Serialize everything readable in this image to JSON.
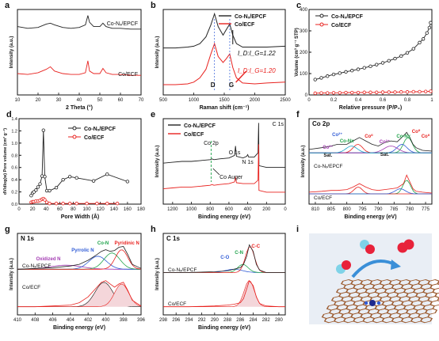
{
  "colors": {
    "co_n_epcf": "#222222",
    "co_ecf": "#e8221f",
    "fit_blue": "#2f5bd6",
    "fit_green": "#1fa34a",
    "fit_red": "#e8221f",
    "fit_purple": "#a23ab2",
    "fit_cyan": "#1aa3c9",
    "shaded": "#f4d6da",
    "panel_i_bg": "#e9eef5"
  },
  "legend_entries": {
    "co_n_epcf": "Co-Nₓ/EPCF",
    "co_ecf": "Co/ECF"
  },
  "panels": {
    "a": {
      "letter": "a",
      "xlabel": "2 Theta (°)",
      "ylabel": "Intensity (a.u.)",
      "curve_labels": [
        "Co-Nₓ/EPCF",
        "Co/ECF"
      ]
    },
    "b": {
      "letter": "b",
      "xlabel": "Raman shift (cm⁻¹)",
      "ylabel": "Intensity (a.u.)",
      "ratio_top": "I_D:I_G=1.22",
      "ratio_bottom": "I_D:I_G=1.20",
      "band_d": "D",
      "band_g": "G"
    },
    "c": {
      "letter": "c",
      "xlabel": "Relative pressure (P/P₀)",
      "ylabel": "Volume (cm³ g⁻¹ STP)"
    },
    "d": {
      "letter": "d",
      "xlabel": "Pore Width (Å)",
      "ylabel": "dV/dlog(w) Pore volume (cm³ g⁻¹)"
    },
    "e": {
      "letter": "e",
      "xlabel": "Binding energy (eV)",
      "ylabel": "Intensity (a.u.)",
      "peak_labels": [
        "C 1s",
        "O 1s",
        "N 1s",
        "Co 2p",
        "Co Auger"
      ]
    },
    "f": {
      "letter": "f",
      "title": "Co 2p",
      "xlabel": "Binding energy (eV)",
      "ylabel": "Intensity (a.u.)",
      "peak_labels": [
        "Co⁰",
        "Co²⁺",
        "Co-Nx",
        "Co³⁺",
        "Co⁰",
        "Co³⁺",
        "Co-Nx",
        "Co⁰",
        "Sat.",
        "Sat."
      ],
      "curve_labels": [
        "Co-Nₓ/EPCF",
        "Co/ECF"
      ]
    },
    "g": {
      "letter": "g",
      "title": "N 1s",
      "xlabel": "Binding energy (eV)",
      "ylabel": "Intensity (a.u.)",
      "peak_labels": [
        "Oxidized N",
        "Pyrrolic N",
        "Co-N",
        "Pyridinic N"
      ],
      "curve_labels": [
        "Co-Nₓ/EPCF",
        "Co/ECF"
      ]
    },
    "h": {
      "letter": "h",
      "title": "C 1s",
      "xlabel": "Binding energy (eV)",
      "ylabel": "Intensity (a.u.)",
      "peak_labels": [
        "C-O",
        "C-N",
        "C-C"
      ],
      "curve_labels": [
        "Co-Nₓ/EPCF",
        "Co/ECF"
      ]
    },
    "i": {
      "letter": "i"
    }
  },
  "chart_data": [
    {
      "panel": "a",
      "type": "line",
      "xlabel": "2 Theta (°)",
      "ylabel": "Intensity (a.u.)",
      "xlim": [
        10,
        70
      ],
      "xticks": [
        10,
        20,
        30,
        40,
        50,
        60,
        70
      ],
      "series": [
        {
          "name": "Co-Nₓ/EPCF",
          "x": [
            10,
            15,
            20,
            24,
            26,
            28,
            32,
            36,
            40,
            43,
            44.2,
            45,
            47,
            50,
            51.5,
            53,
            56,
            60,
            65,
            70
          ],
          "y": [
            0.8,
            0.78,
            0.79,
            0.83,
            0.84,
            0.82,
            0.79,
            0.78,
            0.79,
            0.82,
            0.93,
            0.85,
            0.8,
            0.8,
            0.84,
            0.8,
            0.78,
            0.78,
            0.77,
            0.77
          ]
        },
        {
          "name": "Co/ECF",
          "x": [
            10,
            15,
            20,
            24,
            26,
            28,
            32,
            36,
            40,
            43,
            44.2,
            45,
            47,
            50,
            51.5,
            53,
            56,
            60,
            65,
            70
          ],
          "y": [
            0.25,
            0.24,
            0.26,
            0.3,
            0.33,
            0.28,
            0.25,
            0.24,
            0.24,
            0.26,
            0.4,
            0.28,
            0.25,
            0.25,
            0.31,
            0.26,
            0.24,
            0.24,
            0.23,
            0.23
          ]
        }
      ]
    },
    {
      "panel": "b",
      "type": "line",
      "xlabel": "Raman shift (cm⁻¹)",
      "ylabel": "Intensity (a.u.)",
      "xlim": [
        500,
        2500
      ],
      "xticks": [
        500,
        1000,
        1500,
        2000,
        2500
      ],
      "series": [
        {
          "name": "Co-Nₓ/EPCF",
          "x": [
            500,
            700,
            900,
            1000,
            1100,
            1200,
            1280,
            1340,
            1400,
            1480,
            1530,
            1590,
            1640,
            1700,
            1800,
            2000,
            2200,
            2500
          ],
          "y": [
            0.55,
            0.55,
            0.56,
            0.57,
            0.6,
            0.68,
            0.82,
            0.95,
            0.8,
            0.7,
            0.76,
            0.83,
            0.7,
            0.6,
            0.56,
            0.56,
            0.56,
            0.57
          ]
        },
        {
          "name": "Co/ECF",
          "x": [
            500,
            700,
            900,
            1000,
            1100,
            1200,
            1280,
            1340,
            1400,
            1480,
            1530,
            1590,
            1640,
            1700,
            1800,
            2000,
            2200,
            2500
          ],
          "y": [
            0.12,
            0.12,
            0.13,
            0.15,
            0.2,
            0.3,
            0.48,
            0.6,
            0.45,
            0.38,
            0.42,
            0.48,
            0.32,
            0.2,
            0.14,
            0.13,
            0.14,
            0.15
          ]
        }
      ]
    },
    {
      "panel": "c",
      "type": "line",
      "xlabel": "Relative pressure (P/P₀)",
      "ylabel": "Volume (cm³ g⁻¹ STP)",
      "xlim": [
        0,
        1.0
      ],
      "ylim": [
        0,
        400
      ],
      "xticks": [
        0.0,
        0.2,
        0.4,
        0.6,
        0.8,
        1.0
      ],
      "yticks": [
        0,
        100,
        200,
        300,
        400
      ],
      "series": [
        {
          "name": "Co-Nₓ/EPCF",
          "x": [
            0.05,
            0.1,
            0.15,
            0.2,
            0.25,
            0.3,
            0.35,
            0.4,
            0.45,
            0.5,
            0.55,
            0.6,
            0.65,
            0.7,
            0.75,
            0.8,
            0.85,
            0.9,
            0.93,
            0.96,
            0.98,
            0.99
          ],
          "y": [
            72,
            80,
            88,
            96,
            102,
            108,
            114,
            120,
            127,
            134,
            142,
            150,
            160,
            170,
            182,
            197,
            216,
            245,
            262,
            290,
            315,
            338
          ]
        },
        {
          "name": "Co/ECF",
          "x": [
            0.05,
            0.1,
            0.15,
            0.2,
            0.25,
            0.3,
            0.35,
            0.4,
            0.45,
            0.5,
            0.55,
            0.6,
            0.65,
            0.7,
            0.75,
            0.8,
            0.85,
            0.9,
            0.95,
            0.99
          ],
          "y": [
            8,
            9,
            9,
            10,
            10,
            11,
            11,
            11,
            12,
            12,
            12,
            13,
            13,
            13,
            14,
            14,
            15,
            15,
            16,
            17
          ]
        }
      ]
    },
    {
      "panel": "d",
      "type": "line",
      "xlabel": "Pore Width (Å)",
      "ylabel": "dV/dlog(w) Pore volume (cm³ g⁻¹)",
      "xlim": [
        0,
        180
      ],
      "ylim": [
        0,
        1.4
      ],
      "xticks": [
        0,
        20,
        40,
        60,
        80,
        100,
        120,
        140,
        160,
        180
      ],
      "yticks": [
        0.0,
        0.2,
        0.4,
        0.6,
        0.8,
        1.0,
        1.2,
        1.4
      ],
      "series": [
        {
          "name": "Co-Nₓ/EPCF",
          "x": [
            18,
            20,
            22,
            25,
            28,
            31,
            34,
            36,
            38,
            41,
            45,
            55,
            65,
            75,
            85,
            110,
            130,
            160
          ],
          "y": [
            0.14,
            0.18,
            0.2,
            0.23,
            0.28,
            0.33,
            0.46,
            1.21,
            0.45,
            0.22,
            0.22,
            0.27,
            0.4,
            0.45,
            0.43,
            0.38,
            0.49,
            0.37
          ]
        },
        {
          "name": "Co/ECF",
          "x": [
            18,
            20,
            22,
            25,
            28,
            31,
            34,
            36,
            38,
            41,
            45,
            55,
            65,
            75,
            85,
            100,
            115,
            130,
            145
          ],
          "y": [
            0.03,
            0.04,
            0.04,
            0.05,
            0.05,
            0.06,
            0.08,
            0.09,
            0.07,
            0.03,
            0.01,
            0.01,
            0.01,
            0.01,
            0.01,
            0.01,
            0.01,
            0.01,
            0.01
          ]
        }
      ]
    },
    {
      "panel": "e",
      "type": "line",
      "xlabel": "Binding energy (eV)",
      "ylabel": "Intensity (a.u.)",
      "xlim": [
        1300,
        0
      ],
      "xticks": [
        1200,
        1000,
        800,
        600,
        400,
        200,
        0
      ],
      "series": [
        {
          "name": "Co-Nₓ/EPCF",
          "x": [
            1300,
            1200,
            1100,
            1000,
            900,
            800,
            780,
            760,
            700,
            600,
            540,
            530,
            520,
            450,
            410,
            400,
            390,
            330,
            290,
            284,
            280,
            200,
            100,
            0
          ],
          "y": [
            0.48,
            0.49,
            0.5,
            0.5,
            0.51,
            0.52,
            0.53,
            0.52,
            0.53,
            0.54,
            0.57,
            0.68,
            0.56,
            0.54,
            0.56,
            0.58,
            0.55,
            0.55,
            0.6,
            0.95,
            0.45,
            0.43,
            0.43,
            0.43
          ]
        },
        {
          "name": "Co/ECF",
          "x": [
            1300,
            1200,
            1100,
            1000,
            900,
            800,
            780,
            760,
            700,
            600,
            540,
            530,
            520,
            450,
            330,
            290,
            284,
            280,
            200,
            100,
            0
          ],
          "y": [
            0.18,
            0.19,
            0.2,
            0.2,
            0.21,
            0.22,
            0.23,
            0.22,
            0.23,
            0.24,
            0.26,
            0.32,
            0.25,
            0.24,
            0.24,
            0.28,
            0.7,
            0.16,
            0.14,
            0.14,
            0.14
          ]
        }
      ]
    },
    {
      "panel": "f",
      "type": "line",
      "xlabel": "Binding energy (eV)",
      "ylabel": "Intensity (a.u.)",
      "xlim": [
        812,
        773
      ],
      "xticks": [
        810,
        805,
        800,
        795,
        790,
        785,
        780,
        775
      ],
      "series": [
        {
          "name": "Co-Nₓ/EPCF",
          "x": [
            812,
            808,
            805,
            803,
            800,
            798,
            796,
            794,
            792,
            790,
            788,
            786,
            784,
            782,
            781,
            780,
            779,
            778,
            776,
            773
          ],
          "y": [
            0.64,
            0.66,
            0.68,
            0.7,
            0.7,
            0.74,
            0.78,
            0.74,
            0.7,
            0.68,
            0.72,
            0.74,
            0.73,
            0.8,
            0.84,
            0.78,
            0.7,
            0.66,
            0.63,
            0.62
          ]
        },
        {
          "name": "Co/ECF",
          "x": [
            812,
            808,
            805,
            803,
            800,
            798,
            796,
            794,
            792,
            790,
            788,
            786,
            784,
            782,
            781,
            780,
            779,
            778,
            776,
            773
          ],
          "y": [
            0.14,
            0.15,
            0.16,
            0.16,
            0.17,
            0.2,
            0.24,
            0.2,
            0.17,
            0.16,
            0.17,
            0.18,
            0.19,
            0.24,
            0.34,
            0.26,
            0.18,
            0.15,
            0.14,
            0.13
          ]
        }
      ]
    },
    {
      "panel": "g",
      "type": "line",
      "xlabel": "Binding energy (eV)",
      "ylabel": "Intensity (a.u.)",
      "xlim": [
        410,
        396
      ],
      "xticks": [
        410,
        408,
        406,
        404,
        402,
        400,
        398,
        396
      ],
      "series": [
        {
          "name": "Co-Nₓ/EPCF",
          "x": [
            410,
            408,
            406,
            404,
            403,
            402,
            401,
            400.5,
            400,
            399.5,
            399,
            398.5,
            398,
            397.5,
            397,
            396
          ],
          "y": [
            0.56,
            0.57,
            0.58,
            0.6,
            0.62,
            0.67,
            0.74,
            0.78,
            0.8,
            0.78,
            0.79,
            0.83,
            0.84,
            0.74,
            0.62,
            0.57
          ]
        },
        {
          "name": "Co/ECF",
          "x": [
            410,
            408,
            406,
            404,
            403,
            402,
            401,
            400.5,
            400,
            399.5,
            399,
            398.5,
            398,
            397.5,
            397,
            396
          ],
          "y": [
            0.1,
            0.1,
            0.11,
            0.12,
            0.15,
            0.22,
            0.34,
            0.4,
            0.42,
            0.38,
            0.34,
            0.38,
            0.4,
            0.3,
            0.18,
            0.11
          ]
        }
      ]
    },
    {
      "panel": "h",
      "type": "line",
      "xlabel": "Binding energy (eV)",
      "ylabel": "Intensity (a.u.)",
      "xlim": [
        298,
        279
      ],
      "xticks": [
        298,
        296,
        294,
        292,
        290,
        288,
        286,
        284,
        282,
        280
      ],
      "series": [
        {
          "name": "Co-Nₓ/EPCF",
          "x": [
            298,
            294,
            290,
            288,
            287,
            286,
            285.5,
            285,
            284.6,
            284,
            283.5,
            283,
            282,
            280,
            279
          ],
          "y": [
            0.52,
            0.52,
            0.53,
            0.54,
            0.56,
            0.58,
            0.62,
            0.72,
            0.86,
            0.78,
            0.62,
            0.55,
            0.52,
            0.52,
            0.52
          ]
        },
        {
          "name": "Co/ECF",
          "x": [
            298,
            294,
            290,
            288,
            287,
            286,
            285.5,
            285,
            284.6,
            284,
            283.5,
            283,
            282,
            280,
            279
          ],
          "y": [
            0.1,
            0.1,
            0.11,
            0.12,
            0.13,
            0.15,
            0.2,
            0.32,
            0.42,
            0.36,
            0.22,
            0.14,
            0.11,
            0.1,
            0.1
          ]
        }
      ]
    }
  ]
}
